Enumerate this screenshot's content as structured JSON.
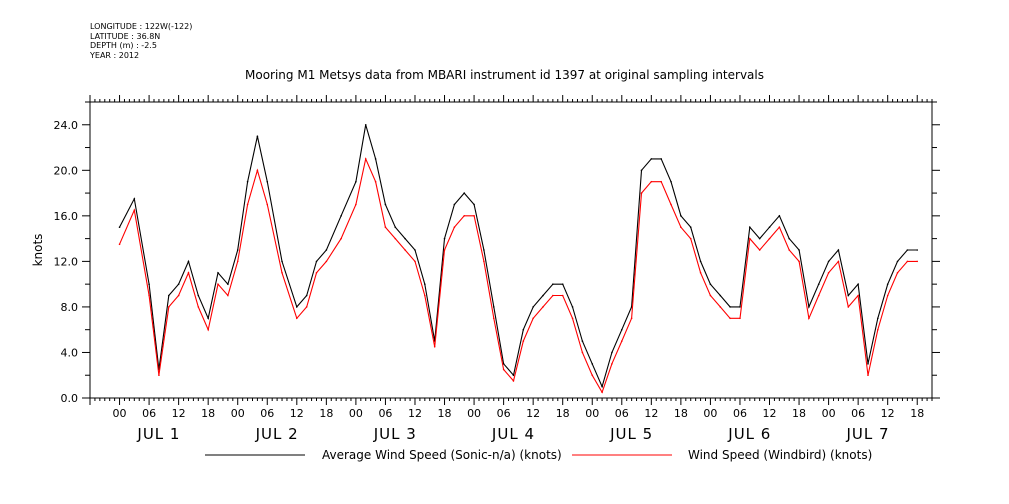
{
  "metadata": {
    "longitude": "LONGITUDE : 122W(-122)",
    "latitude": "LATITUDE : 36.8N",
    "depth": "DEPTH (m) : -2.5",
    "year": "YEAR : 2012"
  },
  "chart_data": {
    "type": "line",
    "title": "Mooring M1 Metsys data from MBARI instrument id 1397 at original sampling intervals",
    "xlabel": "",
    "ylabel": "knots",
    "ylim": [
      0,
      26
    ],
    "yticks": [
      "0.0",
      "4.0",
      "8.0",
      "12.0",
      "16.0",
      "20.0",
      "24.0"
    ],
    "xlim_hours": [
      -6,
      165
    ],
    "hour_ticks": [
      "00",
      "06",
      "12",
      "18",
      "00",
      "06",
      "12",
      "18",
      "00",
      "06",
      "12",
      "18",
      "00",
      "06",
      "12",
      "18",
      "00",
      "06",
      "12",
      "18",
      "00",
      "06",
      "12",
      "18",
      "00",
      "06",
      "12",
      "18"
    ],
    "day_labels": [
      "JUL 1",
      "JUL 2",
      "JUL 3",
      "JUL 4",
      "JUL 5",
      "JUL 6",
      "JUL 7"
    ],
    "x_hours": [
      0,
      3,
      6,
      8,
      10,
      12,
      14,
      16,
      18,
      20,
      22,
      24,
      26,
      28,
      30,
      33,
      36,
      38,
      40,
      42,
      45,
      48,
      50,
      52,
      54,
      56,
      58,
      60,
      62,
      64,
      66,
      68,
      70,
      72,
      74,
      76,
      78,
      80,
      82,
      84,
      86,
      88,
      90,
      92,
      94,
      96,
      98,
      100,
      102,
      104,
      106,
      108,
      110,
      112,
      114,
      116,
      118,
      120,
      122,
      124,
      126,
      128,
      130,
      132,
      134,
      136,
      138,
      140,
      142,
      144,
      146,
      148,
      150,
      152,
      154,
      156,
      158,
      160,
      162
    ],
    "series": [
      {
        "name": "Average Wind Speed (Sonic-n/a) (knots)",
        "color": "#000000",
        "values": [
          15,
          17.5,
          10,
          2.5,
          9,
          10,
          12,
          9,
          7,
          11,
          10,
          13,
          19,
          23,
          19,
          12,
          8,
          9,
          12,
          13,
          16,
          19,
          24,
          21,
          17,
          15,
          14,
          13,
          10,
          5,
          14,
          17,
          18,
          17,
          13,
          8,
          3,
          2,
          6,
          8,
          9,
          10,
          10,
          8,
          5,
          3,
          1,
          4,
          6,
          8,
          20,
          21,
          21,
          19,
          16,
          15,
          12,
          10,
          9,
          8,
          8,
          15,
          14,
          15,
          16,
          14,
          13,
          8,
          10,
          12,
          13,
          9,
          10,
          3,
          7,
          10,
          12,
          13,
          13
        ]
      },
      {
        "name": "Wind Speed (Windbird) (knots)",
        "color": "#ff0000",
        "values": [
          13.5,
          16.5,
          9,
          2,
          8,
          9,
          11,
          8,
          6,
          10,
          9,
          12,
          17,
          20,
          17,
          11,
          7,
          8,
          11,
          12,
          14,
          17,
          21,
          19,
          15,
          14,
          13,
          12,
          9,
          4.5,
          13,
          15,
          16,
          16,
          12,
          7,
          2.5,
          1.5,
          5,
          7,
          8,
          9,
          9,
          7,
          4,
          2,
          0.5,
          3,
          5,
          7,
          18,
          19,
          19,
          17,
          15,
          14,
          11,
          9,
          8,
          7,
          7,
          14,
          13,
          14,
          15,
          13,
          12,
          7,
          9,
          11,
          12,
          8,
          9,
          2,
          6,
          9,
          11,
          12,
          12
        ]
      }
    ],
    "grid": false,
    "legend_position": "bottom-center"
  }
}
